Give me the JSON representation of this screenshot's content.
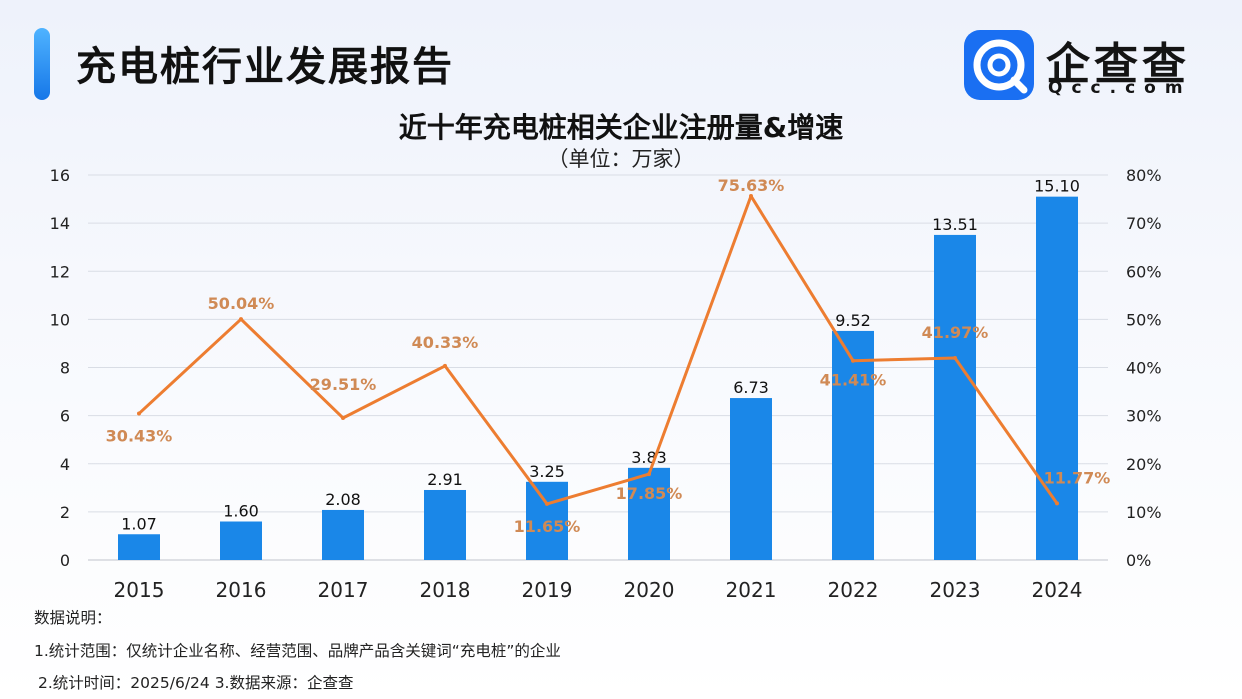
{
  "header": {
    "title": "充电桩行业发展报告",
    "logo_text": "企查查",
    "logo_sub": "Qcc.com"
  },
  "chart_data": {
    "type": "bar",
    "title": "近十年充电桩相关企业注册量&增速",
    "subtitle": "（单位：万家）",
    "categories": [
      "2015",
      "2016",
      "2017",
      "2018",
      "2019",
      "2020",
      "2021",
      "2022",
      "2023",
      "2024"
    ],
    "series": [
      {
        "type": "bar",
        "axis": "left",
        "color": "#1a87e8",
        "values": [
          1.07,
          1.6,
          2.08,
          2.91,
          3.25,
          3.83,
          6.73,
          9.52,
          13.51,
          15.1
        ],
        "labels": [
          "1.07",
          "1.60",
          "2.08",
          "2.91",
          "3.25",
          "3.83",
          "6.73",
          "9.52",
          "13.51",
          "15.10"
        ]
      },
      {
        "type": "line",
        "axis": "right",
        "color": "#ed7d31",
        "values": [
          30.43,
          50.04,
          29.51,
          40.33,
          11.65,
          17.85,
          75.63,
          41.41,
          41.97,
          11.77
        ],
        "labels": [
          "30.43%",
          "50.04%",
          "29.51%",
          "40.33%",
          "11.65%",
          "17.85%",
          "75.63%",
          "41.41%",
          "41.97%",
          "11.77%"
        ]
      }
    ],
    "y_left": {
      "min": 0,
      "max": 16,
      "ticks": [
        "0",
        "2",
        "4",
        "6",
        "8",
        "10",
        "12",
        "14",
        "16"
      ]
    },
    "y_right": {
      "min": 0,
      "max": 80,
      "ticks": [
        "0%",
        "10%",
        "20%",
        "30%",
        "40%",
        "50%",
        "60%",
        "70%",
        "80%"
      ]
    },
    "grid": true,
    "legend": "none"
  },
  "notes": {
    "line1": "数据说明：",
    "line2": "1.统计范围：仅统计企业名称、经营范围、品牌产品含关键词“充电桩”的企业",
    "line3": "2.统计时间：2025/6/24  3.数据来源：企查查"
  }
}
